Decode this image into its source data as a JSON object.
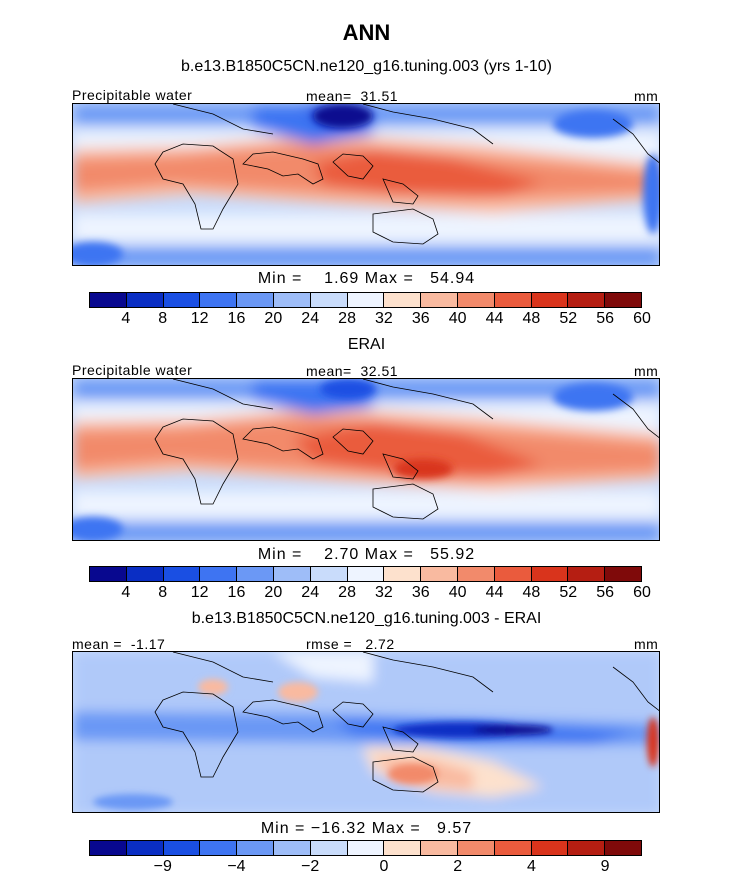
{
  "figure": {
    "title": "ANN"
  },
  "chart_data": [
    {
      "type": "heatmap",
      "title": "b.e13.B1850C5CN.ne120_g16.tuning.003 (yrs 1-10)",
      "variable_label": "Precipitable water",
      "mean_label": "mean=",
      "mean_value": "31.51",
      "units": "mm",
      "min_label": "Min =",
      "min_value": "1.69",
      "max_label": "Max =",
      "max_value": "54.94",
      "colorbar": {
        "colors": [
          "#08088f",
          "#0a2ec4",
          "#1a4fe3",
          "#3e74f2",
          "#6b98f5",
          "#9ebdf8",
          "#c9dcfb",
          "#eef4ff",
          "#fde1cd",
          "#f9baa0",
          "#f28a6b",
          "#ea5b3d",
          "#d9341c",
          "#b51e12",
          "#7f0a0a"
        ],
        "ticks": [
          "4",
          "8",
          "12",
          "16",
          "20",
          "24",
          "28",
          "32",
          "36",
          "40",
          "44",
          "48",
          "52",
          "56",
          "60"
        ]
      }
    },
    {
      "type": "heatmap",
      "title": "ERAI",
      "variable_label": "Precipitable water",
      "mean_label": "mean=",
      "mean_value": "32.51",
      "units": "mm",
      "min_label": "Min =",
      "min_value": "2.70",
      "max_label": "Max =",
      "max_value": "55.92",
      "colorbar": {
        "colors": [
          "#08088f",
          "#0a2ec4",
          "#1a4fe3",
          "#3e74f2",
          "#6b98f5",
          "#9ebdf8",
          "#c9dcfb",
          "#eef4ff",
          "#fde1cd",
          "#f9baa0",
          "#f28a6b",
          "#ea5b3d",
          "#d9341c",
          "#b51e12",
          "#7f0a0a"
        ],
        "ticks": [
          "4",
          "8",
          "12",
          "16",
          "20",
          "24",
          "28",
          "32",
          "36",
          "40",
          "44",
          "48",
          "52",
          "56",
          "60"
        ]
      }
    },
    {
      "type": "heatmap",
      "title": "b.e13.B1850C5CN.ne120_g16.tuning.003 - ERAI",
      "mean_label": "mean =",
      "mean_value": "-1.17",
      "rmse_label": "rmse =",
      "rmse_value": "2.72",
      "units": "mm",
      "min_label": "Min =",
      "min_value": "−16.32",
      "max_label": "Max =",
      "max_value": "9.57",
      "colorbar": {
        "colors": [
          "#08088f",
          "#0a2ec4",
          "#1a4fe3",
          "#3e74f2",
          "#6b98f5",
          "#9ebdf8",
          "#c9dcfb",
          "#eef4ff",
          "#fde1cd",
          "#f9baa0",
          "#f28a6b",
          "#ea5b3d",
          "#d9341c",
          "#b51e12",
          "#7f0a0a"
        ],
        "ticks": [
          "−9",
          "−4",
          "−2",
          "0",
          "2",
          "4",
          "9"
        ],
        "tick_positions": [
          2,
          4,
          6,
          8,
          10,
          12,
          14
        ]
      }
    }
  ]
}
